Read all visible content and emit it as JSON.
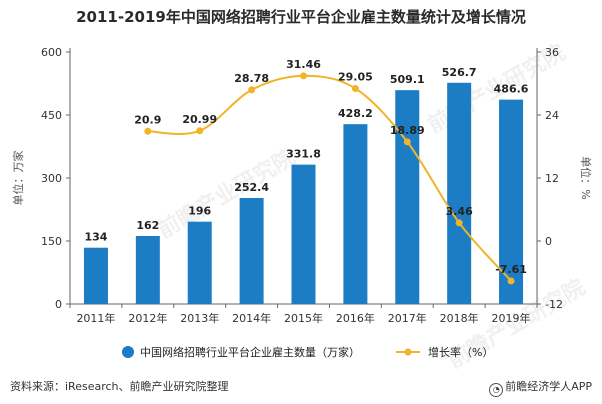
{
  "title": "2011-2019年中国网络招聘行业平台企业雇主数量统计及增长情况",
  "source_text": "资料来源：iResearch、前瞻产业研究院整理",
  "brand_text": "前瞻经济学人APP",
  "watermark": "前瞻产业研究院",
  "colors": {
    "bar": "#1c7cc4",
    "line": "#f0b42a",
    "axis": "#666666",
    "grid": "#e8e8e8"
  },
  "chart_data": {
    "type": "bar",
    "categories": [
      "2011年",
      "2012年",
      "2013年",
      "2014年",
      "2015年",
      "2016年",
      "2017年",
      "2018年",
      "2019年"
    ],
    "series": [
      {
        "name": "中国网络招聘行业平台企业雇主数量（万家）",
        "type": "bar",
        "axis": "left",
        "values": [
          134,
          162,
          196,
          252.4,
          331.8,
          428.2,
          509.1,
          526.7,
          486.6
        ]
      },
      {
        "name": "增长率（%）",
        "type": "line",
        "axis": "right",
        "values": [
          null,
          20.9,
          20.99,
          28.78,
          31.46,
          29.05,
          18.89,
          3.46,
          -7.61
        ],
        "labels": [
          "",
          "20.9",
          "20.99",
          "28.78",
          "31.46",
          "29.05",
          "18.89",
          "3.46",
          "-7.61"
        ]
      }
    ],
    "y_left": {
      "label": "单位：万家",
      "ticks": [
        0,
        150,
        300,
        450,
        600
      ],
      "lim": [
        0,
        600
      ]
    },
    "y_right": {
      "label": "单位：%",
      "ticks": [
        -12,
        0,
        12,
        24,
        36
      ],
      "lim": [
        -12,
        36
      ]
    },
    "legend_position": "bottom",
    "grid": false
  }
}
